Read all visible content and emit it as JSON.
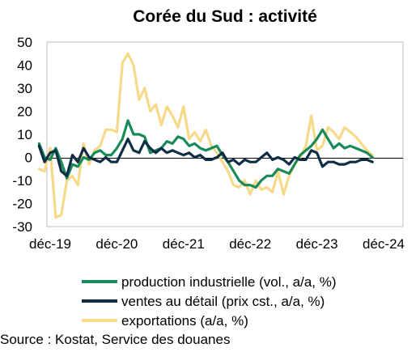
{
  "chart_data": {
    "type": "line",
    "title": "Corée du Sud : activité",
    "xlabel": "",
    "ylabel": "",
    "ylim": [
      -30,
      50
    ],
    "yticks": [
      50,
      40,
      30,
      20,
      10,
      0,
      -10,
      -20,
      -30
    ],
    "xticks": [
      "déc-19",
      "déc-20",
      "déc-21",
      "déc-22",
      "déc-23",
      "déc-24"
    ],
    "x_range": [
      "2019-12",
      "2024-12"
    ],
    "grid": false,
    "legend_position": "bottom",
    "series": [
      {
        "name": "production industrielle (vol., a/a, %)",
        "color": "#1a8a5a",
        "x": [
          "2019-10",
          "2019-11",
          "2019-12",
          "2020-01",
          "2020-02",
          "2020-03",
          "2020-04",
          "2020-05",
          "2020-06",
          "2020-07",
          "2020-08",
          "2020-09",
          "2020-10",
          "2020-11",
          "2020-12",
          "2021-01",
          "2021-02",
          "2021-03",
          "2021-04",
          "2021-05",
          "2021-06",
          "2021-07",
          "2021-08",
          "2021-09",
          "2021-10",
          "2021-11",
          "2021-12",
          "2022-01",
          "2022-02",
          "2022-03",
          "2022-04",
          "2022-05",
          "2022-06",
          "2022-07",
          "2022-08",
          "2022-09",
          "2022-10",
          "2022-11",
          "2022-12",
          "2023-01",
          "2023-02",
          "2023-03",
          "2023-04",
          "2023-05",
          "2023-06",
          "2023-07",
          "2023-08",
          "2023-09",
          "2023-10",
          "2023-11",
          "2023-12",
          "2024-01",
          "2024-02",
          "2024-03",
          "2024-04",
          "2024-05",
          "2024-06",
          "2024-07",
          "2024-08",
          "2024-09",
          "2024-10"
        ],
        "values": [
          6,
          0,
          -1,
          4,
          -2,
          -9,
          -3,
          -4,
          0,
          -1,
          2,
          3,
          1,
          1,
          4,
          8,
          16,
          10,
          10,
          9,
          2,
          3,
          4,
          7,
          6,
          9,
          8,
          5,
          6,
          4,
          3,
          4,
          5,
          1,
          -2,
          -6,
          -10,
          -12,
          -12,
          -13,
          -10,
          -8,
          -8,
          -5,
          -6,
          -7,
          -3,
          1,
          3,
          5,
          8,
          12,
          8,
          4,
          6,
          4,
          5,
          4,
          3,
          2,
          0
        ]
      },
      {
        "name": "ventes au détail (prix cst., a/a, %)",
        "color": "#0f2e45",
        "x": [
          "2019-10",
          "2019-11",
          "2019-12",
          "2020-01",
          "2020-02",
          "2020-03",
          "2020-04",
          "2020-05",
          "2020-06",
          "2020-07",
          "2020-08",
          "2020-09",
          "2020-10",
          "2020-11",
          "2020-12",
          "2021-01",
          "2021-02",
          "2021-03",
          "2021-04",
          "2021-05",
          "2021-06",
          "2021-07",
          "2021-08",
          "2021-09",
          "2021-10",
          "2021-11",
          "2021-12",
          "2022-01",
          "2022-02",
          "2022-03",
          "2022-04",
          "2022-05",
          "2022-06",
          "2022-07",
          "2022-08",
          "2022-09",
          "2022-10",
          "2022-11",
          "2022-12",
          "2023-01",
          "2023-02",
          "2023-03",
          "2023-04",
          "2023-05",
          "2023-06",
          "2023-07",
          "2023-08",
          "2023-09",
          "2023-10",
          "2023-11",
          "2023-12",
          "2024-01",
          "2024-02",
          "2024-03",
          "2024-04",
          "2024-05",
          "2024-06",
          "2024-07",
          "2024-08",
          "2024-09",
          "2024-10"
        ],
        "values": [
          5,
          -2,
          2,
          3,
          -6,
          -8,
          1,
          -2,
          4,
          0,
          -1,
          -2,
          0,
          -2,
          -2,
          3,
          8,
          3,
          2,
          7,
          4,
          2,
          4,
          2,
          3,
          2,
          1,
          2,
          0,
          1,
          -1,
          -1,
          0,
          2,
          -2,
          -1,
          -3,
          -1,
          -2,
          -2,
          0,
          2,
          -1,
          0,
          -1,
          -3,
          0,
          -1,
          -1,
          3,
          2,
          -4,
          -2,
          -2,
          -3,
          -3,
          -2,
          -2,
          -1,
          -1,
          -2
        ]
      },
      {
        "name": "exportations (a/a, %)",
        "color": "#f7d98a",
        "x": [
          "2019-10",
          "2019-11",
          "2019-12",
          "2020-01",
          "2020-02",
          "2020-03",
          "2020-04",
          "2020-05",
          "2020-06",
          "2020-07",
          "2020-08",
          "2020-09",
          "2020-10",
          "2020-11",
          "2020-12",
          "2021-01",
          "2021-02",
          "2021-03",
          "2021-04",
          "2021-05",
          "2021-06",
          "2021-07",
          "2021-08",
          "2021-09",
          "2021-10",
          "2021-11",
          "2021-12",
          "2022-01",
          "2022-02",
          "2022-03",
          "2022-04",
          "2022-05",
          "2022-06",
          "2022-07",
          "2022-08",
          "2022-09",
          "2022-10",
          "2022-11",
          "2022-12",
          "2023-01",
          "2023-02",
          "2023-03",
          "2023-04",
          "2023-05",
          "2023-06",
          "2023-07",
          "2023-08",
          "2023-09",
          "2023-10",
          "2023-11",
          "2023-12",
          "2024-01",
          "2024-02",
          "2024-03",
          "2024-04",
          "2024-05",
          "2024-06",
          "2024-07",
          "2024-08",
          "2024-09",
          "2024-10"
        ],
        "values": [
          -5,
          -6,
          4,
          -26,
          -25,
          -10,
          -8,
          -12,
          6,
          -3,
          3,
          5,
          12,
          12,
          11,
          41,
          45,
          40,
          25,
          30,
          20,
          23,
          14,
          22,
          18,
          13,
          22,
          8,
          11,
          7,
          12,
          5,
          2,
          -2,
          -6,
          -12,
          -13,
          -10,
          -16,
          -10,
          -14,
          -13,
          -15,
          -6,
          -16,
          -8,
          -3,
          0,
          5,
          18,
          3,
          5,
          13,
          11,
          8,
          13,
          11,
          9,
          6,
          3,
          1
        ]
      }
    ],
    "source": "Source : Kostat, Service des douanes"
  }
}
